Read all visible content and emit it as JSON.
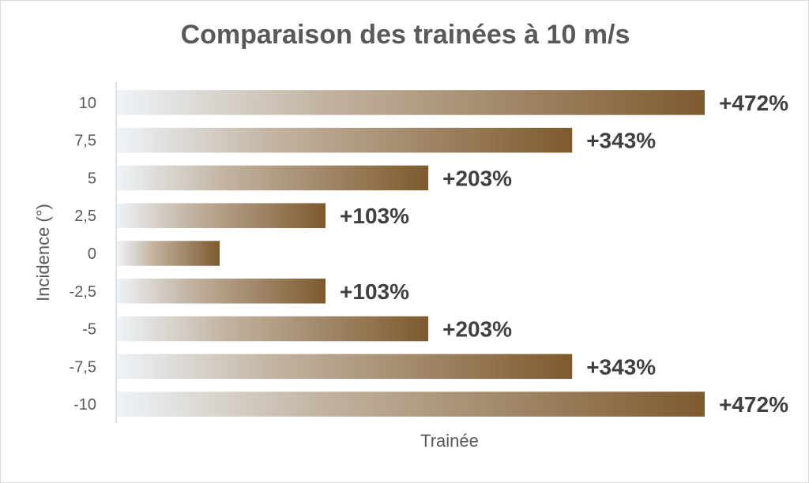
{
  "chart_data": {
    "type": "bar",
    "orientation": "horizontal",
    "title": "Comparaison des trainées à 10 m/s",
    "xlabel": "Trainée",
    "ylabel": "Incidence (°)",
    "categories": [
      "10",
      "7,5",
      "5",
      "2,5",
      "0",
      "-2,5",
      "-5",
      "-7,5",
      "-10"
    ],
    "values": [
      5.72,
      4.43,
      3.03,
      2.03,
      1.0,
      2.03,
      3.03,
      4.43,
      5.72
    ],
    "data_labels": [
      "+472%",
      "+343%",
      "+203%",
      "+103%",
      "",
      "+103%",
      "+203%",
      "+343%",
      "+472%"
    ],
    "xlim": [
      0,
      5.72
    ],
    "grid": false,
    "legend": "none",
    "colors": {
      "gradient_start": "#eef3f8",
      "gradient_mid": "#c2b3a0",
      "gradient_end": "#7e5a2e"
    }
  }
}
